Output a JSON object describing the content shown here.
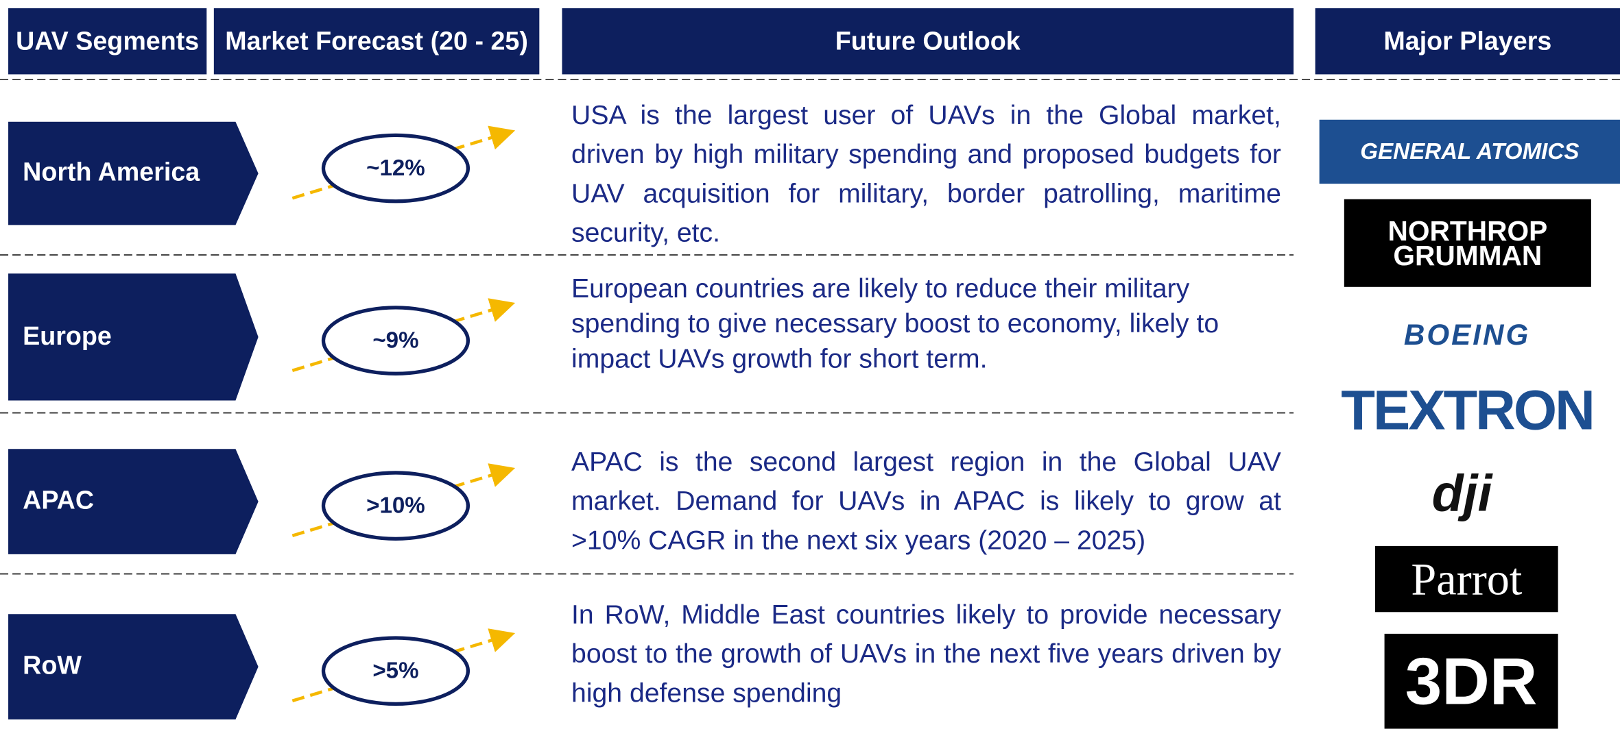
{
  "header": {
    "segments": "UAV Segments",
    "forecast": "Market Forecast (20 - 25)",
    "outlook": "Future Outlook",
    "players": "Major Players"
  },
  "rows": [
    {
      "segment": "North America",
      "forecast": "~12%",
      "outlook": "USA is the largest user of UAVs in the Global market, driven by high military spending and proposed budgets for UAV acquisition for military, border patrolling, maritime security, etc."
    },
    {
      "segment": "Europe",
      "forecast": "~9%",
      "outlook": "European countries are likely to reduce their military spending to give necessary boost to economy, likely to impact UAVs growth for short term."
    },
    {
      "segment": "APAC",
      "forecast": ">10%",
      "outlook": "APAC is the second largest region in the Global UAV market. Demand for UAVs in APAC is likely to grow at >10% CAGR in the next six years (2020 – 2025)"
    },
    {
      "segment": "RoW",
      "forecast": ">5%",
      "outlook": "In RoW, Middle East countries likely to provide necessary boost to the growth of UAVs in the next five years driven by high defense spending"
    }
  ],
  "players": [
    "GENERAL ATOMICS",
    "NORTHROP GRUMMAN",
    "BOEING",
    "TEXTRON",
    "dji",
    "Parrot",
    "3DR"
  ]
}
